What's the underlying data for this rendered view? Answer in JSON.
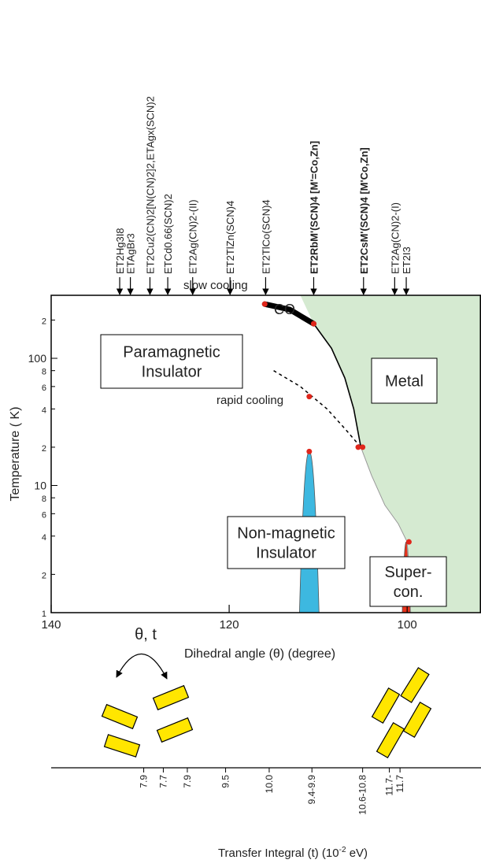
{
  "chart_data": {
    "type": "phase_diagram",
    "xlabel": "Dihedral angle (θ) (degree)",
    "ylabel": "Temperature ( K)",
    "xlim": [
      140,
      91.7
    ],
    "xticks": [
      140,
      120,
      100
    ],
    "ylim": [
      1,
      313
    ],
    "log_y": true,
    "yticks": [
      1,
      2,
      4,
      6,
      8,
      10,
      {
        "value": 20,
        "label": "2"
      },
      {
        "value": 40,
        "label": "4"
      },
      {
        "value": 60,
        "label": "6"
      },
      {
        "value": 80,
        "label": "8"
      },
      100,
      {
        "value": 200,
        "label": "2"
      }
    ],
    "materials": [
      {
        "label": "ET2Hg3I8",
        "x": 132.3,
        "bold": false
      },
      {
        "label": "ETAgBr3",
        "x": 131.1,
        "bold": false
      },
      {
        "label": "ET2Cu2(CN)2[N(CN)2]2,ETAgx(SCN)2",
        "x": 128.9,
        "bold": false
      },
      {
        "label": "ETCd0.66(SCN)2",
        "x": 126.9,
        "bold": false
      },
      {
        "label": "ET2Ag(CN)2-(II)",
        "x": 124.1,
        "bold": false
      },
      {
        "label": "ET2TlZn(SCN)4",
        "x": 119.9,
        "bold": false
      },
      {
        "label": "ET2TlCo(SCN)4",
        "x": 115.9,
        "bold": false
      },
      {
        "label": "ET2RbM'(SCN)4 [M'=Co,Zn]",
        "x": 110.5,
        "bold": true
      },
      {
        "label": "ET2CsM'(SCN)4 [M'Co,Zn]",
        "x": 104.9,
        "bold": true
      },
      {
        "label": "ET2Ag(CN)2-(I)",
        "x": 101.4,
        "bold": false
      },
      {
        "label": "ET2I3",
        "x": 100.1,
        "bold": false
      }
    ],
    "metal_color": "#d5ead1",
    "boundary": {
      "x": [
        116,
        113,
        110.5,
        108.5,
        107,
        106,
        105.2
      ],
      "y": [
        267,
        245,
        187,
        120,
        70,
        40,
        20
      ],
      "color": "#000000"
    },
    "edge": {
      "x": [
        105.2,
        104,
        102.5,
        101,
        100,
        99.6
      ],
      "y": [
        20,
        12,
        7,
        5,
        3.6,
        1
      ],
      "color": "#999999"
    },
    "co_line": {
      "x": [
        116,
        113.2,
        110.5
      ],
      "y": [
        267,
        242,
        187
      ],
      "color": "#000000"
    },
    "rapid_line": {
      "x": [
        115,
        112,
        109,
        107,
        105.2
      ],
      "y": [
        80,
        60,
        40,
        28,
        20
      ],
      "color": "#000000"
    },
    "points": {
      "x": [
        116,
        110.5,
        111,
        105.5,
        105,
        111,
        99.8
      ],
      "y": [
        267,
        187,
        50,
        20,
        20,
        18.5,
        3.6
      ],
      "color": "#e0261b"
    },
    "domes": [
      {
        "center": 111,
        "half_width": 1.1,
        "peak": 18.5,
        "color": "#3db8e0"
      },
      {
        "center": 100.1,
        "half_width": 0.45,
        "peak": 3.6,
        "color": "#e8331c"
      }
    ],
    "annotations": {
      "slow_cooling": "slow cooling",
      "rapid_cooling": "rapid cooling",
      "co": "CO",
      "paramagnetic": [
        "Paramagnetic",
        "Insulator"
      ],
      "metal": "Metal",
      "nonmagnetic": [
        "Non-magnetic",
        "Insulator"
      ],
      "supercon": [
        "Super-",
        "con."
      ]
    },
    "molecule_label": "θ, t",
    "transfer": [
      {
        "label": "7.9",
        "x": 129.6
      },
      {
        "label": "7.7",
        "x": 127.4
      },
      {
        "label": "7.9",
        "x": 124.7
      },
      {
        "label": "9.5",
        "x": 120.4
      },
      {
        "label": "10.0",
        "x": 115.5
      },
      {
        "label": "9.4-9.9",
        "x": 110.7
      },
      {
        "label": "10.6-10.8",
        "x": 105.0
      },
      {
        "label": "11.7-",
        "x": 102.0
      },
      {
        "label": "11.7",
        "x": 100.8
      }
    ],
    "transfer_label": [
      "Transfer Integral (t) (10",
      "-2",
      " eV)"
    ]
  }
}
